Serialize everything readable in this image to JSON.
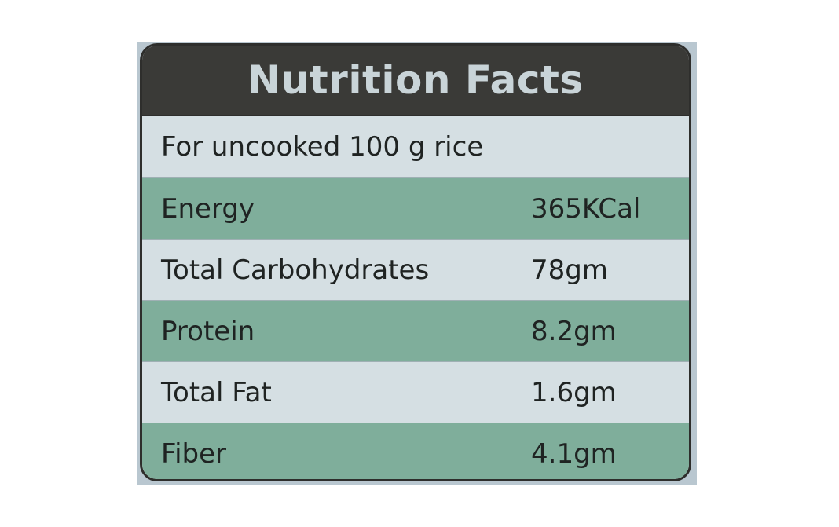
{
  "title": "Nutrition Facts",
  "serving": "For uncooked 100 g rice",
  "rows": [
    {
      "name": "Energy",
      "value": "365KCal"
    },
    {
      "name": "Total Carbohydrates",
      "value": "78gm"
    },
    {
      "name": "Protein",
      "value": "8.2gm"
    },
    {
      "name": "Total Fat",
      "value": "1.6gm"
    },
    {
      "name": "Fiber",
      "value": "4.1gm"
    }
  ],
  "colors": {
    "header_bg": "#3a3a37",
    "header_text": "#c9d4d8",
    "row_light": "#d5dfe3",
    "row_green": "#7fae9b"
  }
}
